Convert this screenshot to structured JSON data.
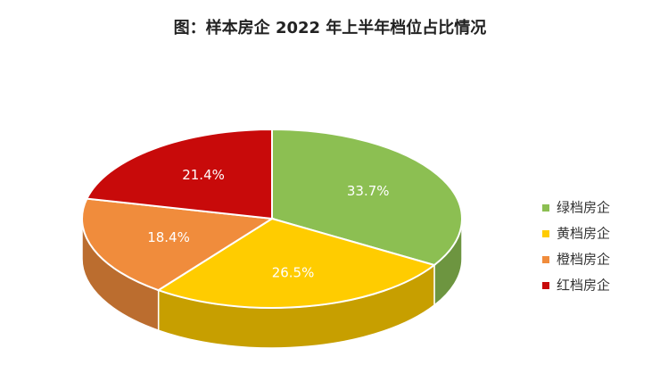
{
  "chart_data": {
    "type": "pie",
    "title": "图：样本房企 2022 年上半年档位占比情况",
    "categories": [
      "绿档房企",
      "黄档房企",
      "橙档房企",
      "红档房企"
    ],
    "values": [
      33.7,
      26.5,
      18.4,
      21.4
    ],
    "value_labels": [
      "33.7%",
      "26.5%",
      "18.4%",
      "21.4%"
    ],
    "colors": [
      "#8cbf52",
      "#ffcc00",
      "#f08c3c",
      "#c80a0a"
    ],
    "legend": "right"
  }
}
